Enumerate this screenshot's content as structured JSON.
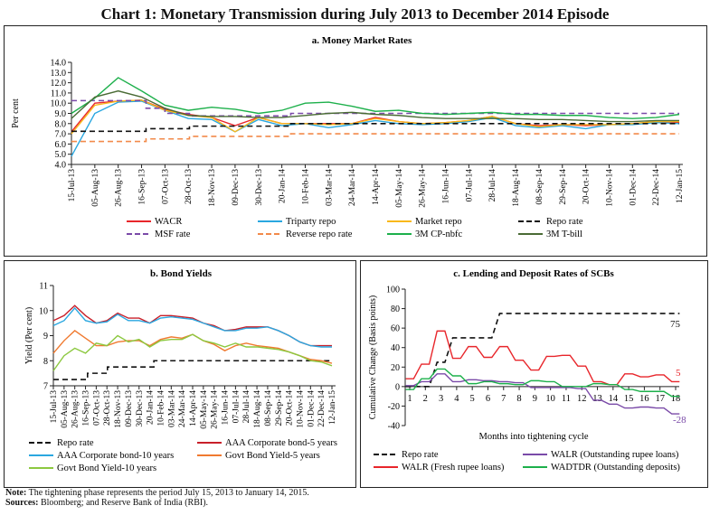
{
  "title": "Chart 1: Monetary Transmission during July 2013 to December 2014 Episode",
  "note_label": "Note:",
  "note_text": " The tightening phase represents the period July 15, 2013 to January 14, 2015.",
  "sources_label": "Sources:",
  "sources_text": " Bloomberg; and Reserve Bank of India (RBI).",
  "chart_data": [
    {
      "id": "a",
      "type": "line",
      "title": "a. Money Market Rates",
      "ylabel": "Per cent",
      "ylim": [
        4,
        14
      ],
      "yticks": [
        "4.0",
        "5.0",
        "6.0",
        "7.0",
        "8.0",
        "9.0",
        "10.0",
        "11.0",
        "12.0",
        "13.0",
        "14.0"
      ],
      "x": [
        "15-Jul-13",
        "05-Aug-13",
        "26-Aug-13",
        "16-Sep-13",
        "07-Oct-13",
        "28-Oct-13",
        "18-Nov-13",
        "09-Dec-13",
        "30-Dec-13",
        "20-Jan-14",
        "10-Feb-14",
        "03-Mar-14",
        "24-Mar-14",
        "14-Apr-14",
        "05-May-14",
        "26-May-14",
        "16-Jun-14",
        "07-Jul-14",
        "28-Jul-14",
        "18-Aug-14",
        "08-Sep-14",
        "29-Sep-14",
        "20-Oct-14",
        "10-Nov-14",
        "01-Dec-14",
        "22-Dec-14",
        "12-Jan-15"
      ],
      "series": [
        {
          "name": "WACR",
          "color": "#e8262b",
          "dash": false,
          "values": [
            7.2,
            10.0,
            10.2,
            10.3,
            9.4,
            8.9,
            8.6,
            7.8,
            8.6,
            8.0,
            8.0,
            8.0,
            8.0,
            8.6,
            8.2,
            8.0,
            8.1,
            8.3,
            8.7,
            8.0,
            7.8,
            7.9,
            7.8,
            7.9,
            8.0,
            8.2,
            8.1
          ]
        },
        {
          "name": "Triparty repo",
          "color": "#2aa7e0",
          "dash": false,
          "values": [
            4.8,
            9.0,
            10.1,
            10.2,
            9.3,
            8.5,
            8.4,
            7.2,
            8.4,
            7.8,
            8.0,
            7.6,
            7.9,
            8.3,
            8.0,
            7.9,
            8.0,
            8.2,
            8.6,
            7.8,
            7.6,
            7.8,
            7.5,
            7.9,
            7.9,
            8.1,
            8.0
          ]
        },
        {
          "name": "Market repo",
          "color": "#f9b81b",
          "dash": false,
          "values": [
            7.0,
            9.8,
            10.2,
            10.3,
            9.3,
            8.8,
            8.6,
            7.2,
            8.6,
            8.0,
            8.0,
            7.9,
            8.0,
            8.5,
            8.2,
            8.0,
            8.1,
            8.3,
            8.7,
            8.0,
            7.7,
            7.9,
            7.9,
            7.9,
            8.0,
            8.2,
            8.2
          ]
        },
        {
          "name": "Repo rate",
          "color": "#111111",
          "dash": true,
          "steps": [
            [
              "15-Jul-13",
              7.25
            ],
            [
              "20-Sep-13",
              7.5
            ],
            [
              "29-Oct-13",
              7.75
            ],
            [
              "28-Jan-14",
              8.0
            ],
            [
              "12-Jan-15",
              8.0
            ]
          ]
        },
        {
          "name": "MSF rate",
          "color": "#7a4aa8",
          "dash": true,
          "steps": [
            [
              "15-Jul-13",
              10.25
            ],
            [
              "20-Sep-13",
              9.5
            ],
            [
              "07-Oct-13",
              9.0
            ],
            [
              "29-Oct-13",
              8.75
            ],
            [
              "28-Jan-14",
              9.0
            ],
            [
              "12-Jan-15",
              9.0
            ]
          ]
        },
        {
          "name": "Reverse repo rate",
          "color": "#f28a4a",
          "dash": true,
          "steps": [
            [
              "15-Jul-13",
              6.25
            ],
            [
              "20-Sep-13",
              6.5
            ],
            [
              "29-Oct-13",
              6.75
            ],
            [
              "28-Jan-14",
              7.0
            ],
            [
              "12-Jan-15",
              7.0
            ]
          ]
        },
        {
          "name": "3M CP-nbfc",
          "color": "#1db04b",
          "dash": false,
          "values": [
            9.0,
            10.5,
            12.5,
            11.2,
            9.8,
            9.3,
            9.6,
            9.4,
            9.0,
            9.3,
            10.0,
            10.1,
            9.7,
            9.2,
            9.3,
            9.0,
            8.9,
            9.0,
            9.1,
            8.9,
            8.9,
            8.8,
            8.8,
            8.6,
            8.5,
            8.6,
            8.9
          ]
        },
        {
          "name": "3M T-bill",
          "color": "#4a6b35",
          "dash": false,
          "values": [
            8.5,
            10.6,
            11.2,
            10.6,
            9.5,
            8.8,
            8.7,
            8.7,
            8.6,
            8.6,
            8.8,
            9.0,
            9.1,
            8.9,
            8.8,
            8.6,
            8.5,
            8.5,
            8.5,
            8.5,
            8.4,
            8.4,
            8.3,
            8.2,
            8.2,
            8.3,
            8.3
          ]
        }
      ]
    },
    {
      "id": "b",
      "type": "line",
      "title": "b. Bond Yields",
      "ylabel": "Yield (Per cent)",
      "ylim": [
        7,
        11
      ],
      "yticks": [
        "7",
        "8",
        "9",
        "10",
        "11"
      ],
      "x": [
        "15-Jul-13",
        "05-Aug-13",
        "26-Aug-13",
        "16-Sep-13",
        "07-Oct-13",
        "28-Oct-13",
        "18-Nov-13",
        "09-Dec-13",
        "30-Dec-13",
        "20-Jan-14",
        "10-Feb-14",
        "03-Mar-14",
        "24-Mar-14",
        "14-Apr-14",
        "05-May-14",
        "26-May-14",
        "16-Jun-14",
        "07-Jul-14",
        "28-Jul-14",
        "18-Aug-14",
        "08-Sep-14",
        "29-Sep-14",
        "20-Oct-14",
        "10-Nov-14",
        "01-Dec-14",
        "22-Dec-14",
        "12-Jan-15"
      ],
      "series": [
        {
          "name": "Repo rate",
          "color": "#111111",
          "dash": true,
          "steps": [
            [
              "15-Jul-13",
              7.25
            ],
            [
              "20-Sep-13",
              7.5
            ],
            [
              "29-Oct-13",
              7.75
            ],
            [
              "28-Jan-14",
              8.0
            ],
            [
              "12-Jan-15",
              8.0
            ]
          ]
        },
        {
          "name": "AAA Corporate bond-5 years",
          "color": "#c8202a",
          "dash": false,
          "values": [
            9.6,
            9.8,
            10.2,
            9.8,
            9.5,
            9.6,
            9.9,
            9.7,
            9.7,
            9.5,
            9.8,
            9.8,
            9.75,
            9.7,
            9.5,
            9.4,
            9.2,
            9.25,
            9.35,
            9.35,
            9.35,
            9.2,
            9.0,
            8.75,
            8.6,
            8.6,
            8.6
          ]
        },
        {
          "name": "AAA Corporate bond-10 years",
          "color": "#2aa7e0",
          "dash": false,
          "values": [
            9.4,
            9.6,
            10.1,
            9.6,
            9.5,
            9.55,
            9.85,
            9.6,
            9.6,
            9.5,
            9.7,
            9.75,
            9.7,
            9.65,
            9.5,
            9.35,
            9.2,
            9.2,
            9.3,
            9.3,
            9.35,
            9.2,
            9.0,
            8.75,
            8.6,
            8.55,
            8.55
          ]
        },
        {
          "name": "Govt Bond Yield-5 years",
          "color": "#f07a30",
          "dash": false,
          "values": [
            8.3,
            8.8,
            9.2,
            8.9,
            8.6,
            8.6,
            8.75,
            8.8,
            8.8,
            8.6,
            8.85,
            8.95,
            8.9,
            9.05,
            8.8,
            8.65,
            8.4,
            8.6,
            8.7,
            8.6,
            8.55,
            8.5,
            8.35,
            8.2,
            8.05,
            8.0,
            7.9
          ]
        },
        {
          "name": "Govt Bond Yield-10 years",
          "color": "#8cc83f",
          "dash": false,
          "values": [
            7.6,
            8.2,
            8.5,
            8.3,
            8.7,
            8.6,
            9.0,
            8.75,
            8.85,
            8.55,
            8.8,
            8.85,
            8.85,
            9.05,
            8.8,
            8.7,
            8.55,
            8.7,
            8.55,
            8.55,
            8.5,
            8.45,
            8.35,
            8.2,
            8.0,
            7.95,
            7.8
          ]
        }
      ]
    },
    {
      "id": "c",
      "type": "line",
      "title": "c. Lending and Deposit Rates of SCBs",
      "ylabel": "Cumulative Change (Basis points)",
      "xlabel": "Months into tightening cycle",
      "ylim": [
        -40,
        100
      ],
      "yticks": [
        "-40",
        "-20",
        "0",
        "20",
        "40",
        "60",
        "80",
        "100"
      ],
      "x": [
        "1",
        "2",
        "3",
        "4",
        "5",
        "6",
        "7",
        "8",
        "9",
        "10",
        "11",
        "12",
        "13",
        "14",
        "15",
        "16",
        "17",
        "18"
      ],
      "series": [
        {
          "name": "Repo rate",
          "color": "#111111",
          "dash": true,
          "values": [
            0,
            0,
            25,
            50,
            50,
            50,
            75,
            75,
            75,
            75,
            75,
            75,
            75,
            75,
            75,
            75,
            75,
            75
          ]
        },
        {
          "name": "WALR (Outstanding rupee loans)",
          "color": "#7a4aa8",
          "dash": false,
          "values": [
            1,
            5,
            13,
            5,
            7,
            6,
            5,
            4,
            -1,
            -1,
            -1,
            -2,
            -14,
            -18,
            -22,
            -21,
            -22,
            -28
          ]
        },
        {
          "name": "WALR (Fresh rupee loans)",
          "color": "#e8262b",
          "dash": false,
          "values": [
            8,
            23,
            57,
            29,
            41,
            30,
            41,
            27,
            17,
            31,
            32,
            21,
            5,
            2,
            13,
            10,
            12,
            5
          ]
        },
        {
          "name": "WADTDR (Outstanding deposits)",
          "color": "#1db04b",
          "dash": false,
          "values": [
            -3,
            8,
            18,
            11,
            3,
            5,
            3,
            2,
            6,
            5,
            0,
            0,
            3,
            2,
            -3,
            -5,
            -5,
            -10
          ]
        }
      ],
      "annotations": [
        {
          "text": "75",
          "color": "#111111"
        },
        {
          "text": "5",
          "color": "#e8262b"
        },
        {
          "text": "-28",
          "color": "#7a4aa8"
        }
      ]
    }
  ]
}
